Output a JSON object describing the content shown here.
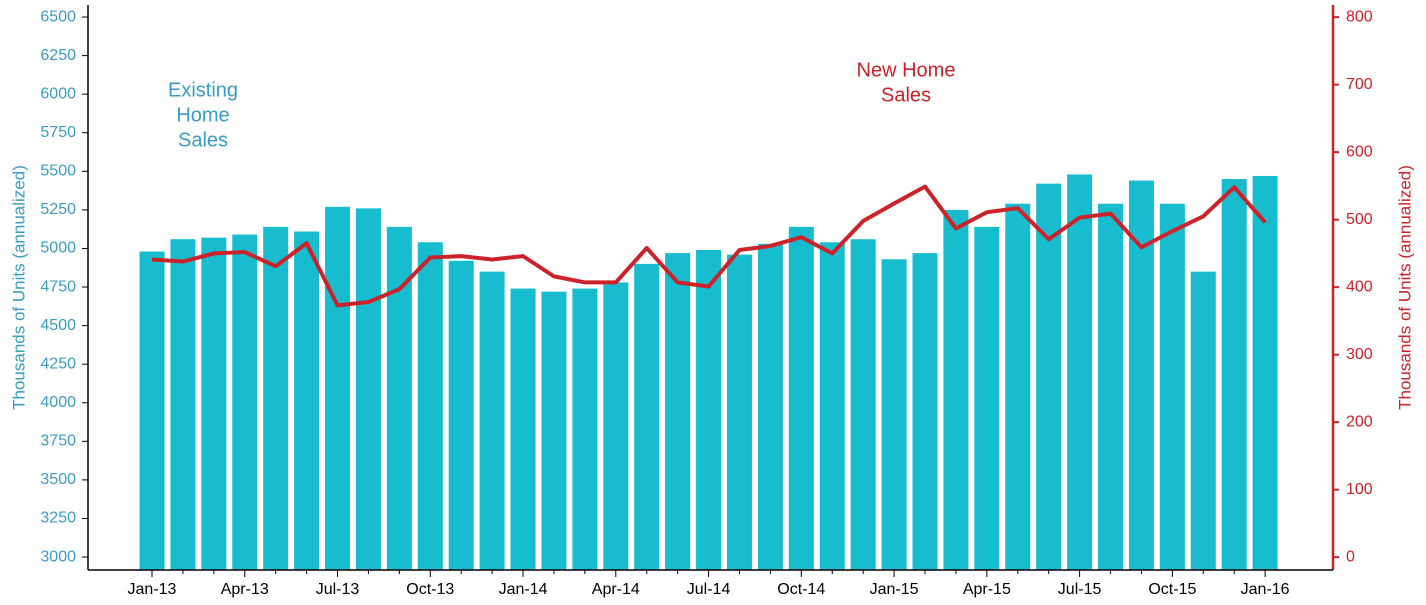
{
  "chart_data": {
    "type": "bar-line",
    "categories": [
      "Jan-13",
      null,
      null,
      "Apr-13",
      null,
      null,
      "Jul-13",
      null,
      null,
      "Oct-13",
      null,
      null,
      "Jan-14",
      null,
      null,
      "Apr-14",
      null,
      null,
      "Jul-14",
      null,
      null,
      "Oct-14",
      null,
      null,
      "Jan-15",
      null,
      null,
      "Apr-15",
      null,
      null,
      "Jul-15",
      null,
      null,
      "Oct-15",
      null,
      null,
      "Jan-16"
    ],
    "series": [
      {
        "name": "Existing Home Sales",
        "type": "bar",
        "color": "#17bccf",
        "axis": "y",
        "values": [
          4980,
          5060,
          5070,
          5090,
          5140,
          5110,
          5270,
          5260,
          5140,
          5040,
          4920,
          4850,
          4740,
          4720,
          4740,
          4780,
          4900,
          4970,
          4990,
          4960,
          5030,
          5140,
          5040,
          5060,
          4930,
          4970,
          5250,
          5140,
          5290,
          5420,
          5480,
          5290,
          5440,
          5290,
          4850,
          5450,
          5470
        ]
      },
      {
        "name": "New Home Sales",
        "type": "line",
        "color": "#cc2229",
        "axis": "y2",
        "values": [
          441,
          438,
          450,
          452,
          431,
          465,
          373,
          378,
          397,
          444,
          446,
          441,
          446,
          416,
          407,
          407,
          458,
          407,
          401,
          455,
          461,
          474,
          450,
          498,
          524,
          549,
          487,
          511,
          517,
          471,
          503,
          509,
          459,
          483,
          505,
          548,
          496
        ]
      }
    ],
    "annotations": [
      {
        "lines": [
          "Existing",
          "Home",
          "Sales"
        ],
        "color": "#3a9cc0"
      },
      {
        "lines": [
          "New Home",
          "Sales"
        ],
        "color": "#cc2229"
      }
    ],
    "ylabel": "Thousands of Units (annualized)",
    "y2label": "Thousands of Units (annualized)",
    "ylim": [
      2916,
      6578
    ],
    "yticks": [
      3000,
      3250,
      3500,
      3750,
      4000,
      4250,
      4500,
      4750,
      5000,
      5250,
      5500,
      5750,
      6000,
      6250,
      6500
    ],
    "y2lim": [
      -19,
      818
    ],
    "y2ticks": [
      0,
      100,
      200,
      300,
      400,
      500,
      600,
      700,
      800
    ],
    "yaxis_color": "#3a9cc0",
    "y2axis_color": "#cc2229",
    "grid": false
  }
}
